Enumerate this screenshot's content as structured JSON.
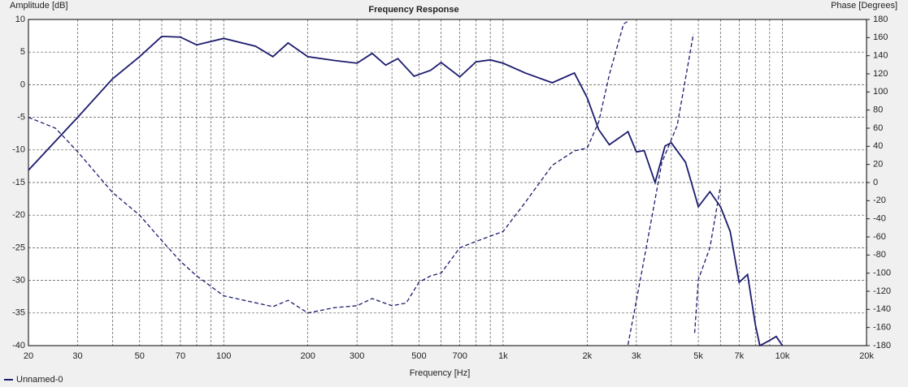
{
  "chart_data": {
    "type": "line",
    "title": "Frequency Response",
    "y_label": "Amplitude [dB]",
    "y2_label": "Phase [Degrees]",
    "x_label": "Frequency [Hz]",
    "xscale": "log",
    "grid": true,
    "legend": "bottom-left",
    "xlim": [
      20,
      20000
    ],
    "xticks": [
      20,
      30,
      {
        "value": 40,
        "label": null
      },
      50,
      {
        "value": 60,
        "label": null
      },
      70,
      {
        "value": 80,
        "label": null
      },
      {
        "value": 90,
        "label": null
      },
      100,
      200,
      300,
      {
        "value": 400,
        "label": null
      },
      500,
      {
        "value": 600,
        "label": null
      },
      700,
      {
        "value": 800,
        "label": null
      },
      {
        "value": 900,
        "label": null
      },
      {
        "value": 1000,
        "label": "1k"
      },
      {
        "value": 2000,
        "label": "2k"
      },
      {
        "value": 3000,
        "label": "3k"
      },
      {
        "value": 4000,
        "label": null
      },
      {
        "value": 5000,
        "label": "5k"
      },
      {
        "value": 6000,
        "label": null
      },
      {
        "value": 7000,
        "label": "7k"
      },
      {
        "value": 8000,
        "label": null
      },
      {
        "value": 9000,
        "label": null
      },
      {
        "value": 10000,
        "label": "10k"
      },
      {
        "value": 20000,
        "label": "20k"
      }
    ],
    "ylim": [
      -40,
      10
    ],
    "yticks": [
      10,
      5,
      0,
      -5,
      -10,
      -15,
      -20,
      -25,
      -30,
      -35,
      -40
    ],
    "y2lim": [
      -180,
      180
    ],
    "y2ticks": [
      180,
      160,
      140,
      120,
      100,
      80,
      60,
      40,
      20,
      0,
      -20,
      -40,
      -60,
      -80,
      -100,
      -120,
      -140,
      -160,
      -180
    ],
    "series": [
      {
        "name": "Unnamed-0",
        "color": "#1c1c6e",
        "dash": false,
        "x": [
          20,
          30,
          40,
          50,
          60,
          70,
          80,
          100,
          130,
          150,
          170,
          200,
          250,
          300,
          340,
          380,
          420,
          480,
          550,
          600,
          700,
          800,
          900,
          1000,
          1200,
          1500,
          1800,
          2000,
          2200,
          2400,
          2800,
          3000,
          3200,
          3500,
          3800,
          4000,
          4500,
          5000,
          5500,
          6000,
          6500,
          7000,
          7500,
          8000,
          8300,
          9000,
          9500,
          10000
        ],
        "values": [
          -13.1,
          -5.0,
          0.9,
          4.3,
          7.4,
          7.3,
          6.1,
          7.1,
          5.9,
          4.3,
          6.4,
          4.3,
          3.7,
          3.3,
          4.8,
          3.0,
          4.0,
          1.3,
          2.2,
          3.4,
          1.2,
          3.5,
          3.8,
          3.3,
          1.8,
          0.3,
          1.8,
          -2.0,
          -6.9,
          -9.2,
          -7.2,
          -10.3,
          -10.1,
          -15.0,
          -9.4,
          -8.9,
          -11.9,
          -18.7,
          -16.4,
          -18.7,
          -22.5,
          -30.3,
          -29.1,
          -36.8,
          -40,
          -39.2,
          -38.6,
          -40
        ]
      },
      {
        "color": "#1c1c6e",
        "dash": true,
        "axis": "y2",
        "x": [
          20,
          25,
          30,
          40,
          50,
          60,
          70,
          80,
          100,
          150,
          170,
          200,
          250,
          300,
          340,
          400,
          450,
          500,
          550,
          600,
          700,
          800,
          1000,
          1200,
          1500,
          1800,
          2000,
          2200,
          2400,
          2700,
          2800,
          null,
          2800,
          3100,
          3400,
          3700,
          4200,
          4700,
          4800,
          null,
          4850,
          5000,
          5500,
          6000
        ],
        "values": [
          72,
          60,
          34,
          -11,
          -36,
          -64,
          -87,
          -103,
          -125,
          -137,
          -130,
          -144,
          -138,
          -136,
          -128,
          -136,
          -133,
          -110,
          -103,
          -100,
          -72,
          -65,
          -54,
          -22,
          19,
          35,
          38,
          67,
          119,
          175,
          178,
          null,
          -179,
          -107,
          -40,
          22,
          63,
          148,
          164,
          null,
          -166,
          -107,
          -72,
          -4
        ]
      }
    ]
  }
}
